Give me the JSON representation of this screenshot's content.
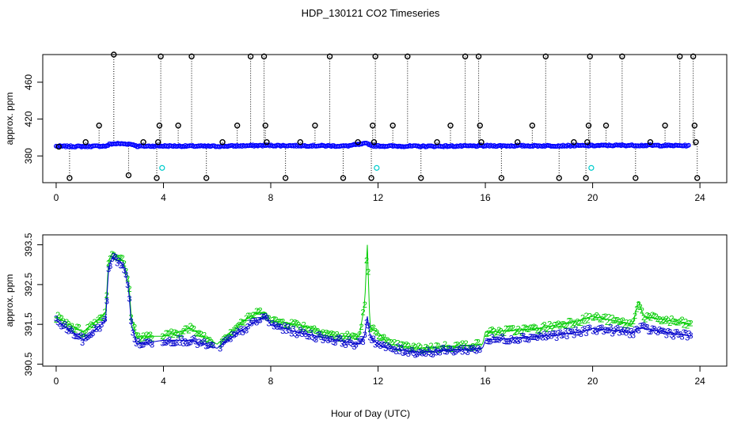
{
  "figure_title": "HDP_130121  CO2 Timeseries",
  "chart_data": [
    {
      "type": "scatter",
      "title": "",
      "xlabel": "",
      "ylabel": "approx. ppm",
      "xlim": [
        -0.5,
        25
      ],
      "ylim": [
        351,
        490
      ],
      "xticks": [
        0,
        4,
        8,
        12,
        16,
        20,
        24
      ],
      "yticks": [
        380,
        420,
        460
      ],
      "grid": false,
      "colors": {
        "points": "#0000ff",
        "outliers": "#000000",
        "flagged": "#00cccc"
      },
      "baseline": {
        "x": [
          0.0,
          1.0,
          1.9,
          2.0,
          2.3,
          2.7,
          2.9,
          3.0,
          4.0,
          6.0,
          7.8,
          8.0,
          10.0,
          10.8,
          11.6,
          11.8,
          12.0,
          13.5,
          15.9,
          16.0,
          18.0,
          20.0,
          21.0,
          22.0,
          23.6
        ],
        "y": [
          390.5,
          390.3,
          390.8,
          393.0,
          393.3,
          393.0,
          392.3,
          390.5,
          390.8,
          390.5,
          391.4,
          391.3,
          391.0,
          390.7,
          393.6,
          391.0,
          390.8,
          390.5,
          390.8,
          391.0,
          391.0,
          391.2,
          391.5,
          391.4,
          391.2
        ]
      },
      "outliers": {
        "x": [
          0.1,
          0.5,
          1.1,
          1.6,
          2.15,
          2.7,
          3.25,
          3.75,
          3.8,
          3.85,
          3.9,
          4.55,
          5.05,
          5.6,
          6.2,
          6.75,
          7.25,
          7.75,
          7.8,
          7.85,
          8.55,
          9.1,
          9.65,
          10.2,
          10.7,
          11.25,
          11.75,
          11.8,
          11.85,
          11.9,
          12.55,
          13.1,
          13.6,
          14.2,
          14.7,
          15.25,
          15.75,
          15.8,
          15.85,
          16.6,
          17.2,
          17.75,
          18.25,
          18.75,
          19.3,
          19.75,
          19.8,
          19.85,
          19.9,
          20.5,
          21.1,
          21.6,
          22.15,
          22.7,
          23.25,
          23.75,
          23.8,
          23.85,
          23.9
        ],
        "y": [
          390,
          356,
          395,
          413,
          490,
          359,
          395,
          356,
          395,
          413,
          488,
          413,
          488,
          356,
          395,
          413,
          488,
          488,
          413,
          395,
          356,
          395,
          413,
          488,
          356,
          395,
          356,
          413,
          395,
          488,
          413,
          488,
          356,
          395,
          413,
          488,
          488,
          413,
          395,
          356,
          395,
          413,
          488,
          356,
          395,
          356,
          395,
          413,
          488,
          413,
          488,
          356,
          395,
          413,
          488,
          488,
          413,
          395,
          356
        ]
      },
      "flagged": {
        "x": [
          3.95,
          11.95,
          19.95
        ],
        "y": [
          367,
          367,
          367
        ]
      }
    },
    {
      "type": "scatter",
      "title": "",
      "xlabel": "Hour of Day (UTC)",
      "ylabel": "approx. ppm",
      "xlim": [
        -0.5,
        25
      ],
      "ylim": [
        390.45,
        393.75
      ],
      "xticks": [
        0,
        4,
        8,
        12,
        16,
        20,
        24
      ],
      "yticks": [
        390.5,
        391.5,
        392.5,
        393.5
      ],
      "grid": false,
      "colors": {
        "series_2": "#00cc00",
        "series_3": "#0000cc"
      },
      "series": [
        {
          "marker": "2",
          "x": [
            0.0,
            1.0,
            1.85,
            1.95,
            2.1,
            2.5,
            2.7,
            2.8,
            3.0,
            4.0,
            5.0,
            6.0,
            6.8,
            7.5,
            7.8,
            8.0,
            9.0,
            10.5,
            11.3,
            11.5,
            11.6,
            11.7,
            12.0,
            12.4,
            13.5,
            15.9,
            16.0,
            18.0,
            19.5,
            20.0,
            21.5,
            21.7,
            21.9,
            23.7
          ],
          "y": [
            391.7,
            391.3,
            391.8,
            393.1,
            393.3,
            393.1,
            392.6,
            391.7,
            391.2,
            391.2,
            391.4,
            391.0,
            391.5,
            391.8,
            391.8,
            391.6,
            391.5,
            391.2,
            391.2,
            392.0,
            393.5,
            391.4,
            391.3,
            391.0,
            390.9,
            391.0,
            391.3,
            391.4,
            391.6,
            391.7,
            391.5,
            392.1,
            391.7,
            391.5
          ]
        },
        {
          "marker": "3",
          "x": [
            0.0,
            1.0,
            1.85,
            1.95,
            2.1,
            2.5,
            2.7,
            2.8,
            3.0,
            4.0,
            5.0,
            6.0,
            6.8,
            7.5,
            7.8,
            8.0,
            9.0,
            10.5,
            11.3,
            11.5,
            11.6,
            11.7,
            12.0,
            12.4,
            13.5,
            15.9,
            16.0,
            18.0,
            19.5,
            20.0,
            21.5,
            21.7,
            21.9,
            23.7
          ],
          "y": [
            391.6,
            391.1,
            391.6,
            392.9,
            393.2,
            393.0,
            392.4,
            391.5,
            391.0,
            391.1,
            391.1,
            390.9,
            391.3,
            391.6,
            391.7,
            391.5,
            391.3,
            391.1,
            391.0,
            391.2,
            391.7,
            391.2,
            391.0,
            390.9,
            390.8,
            390.9,
            391.1,
            391.2,
            391.3,
            391.4,
            391.3,
            391.4,
            391.4,
            391.2
          ]
        }
      ]
    }
  ]
}
